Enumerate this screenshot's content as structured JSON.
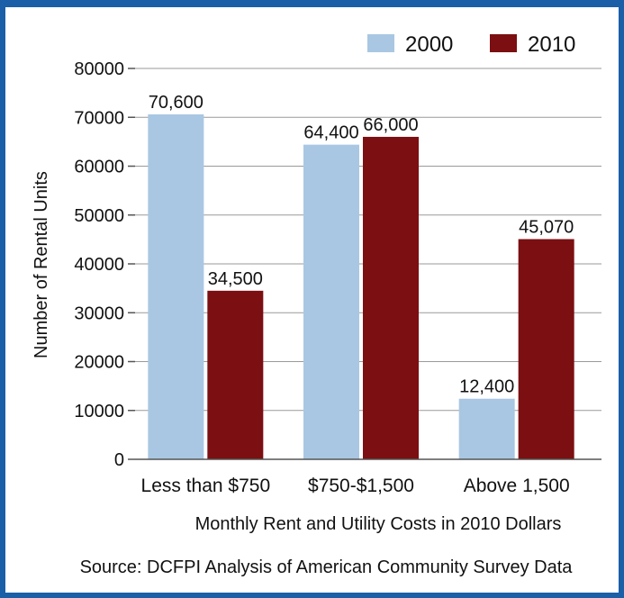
{
  "chart_data": {
    "type": "bar",
    "categories": [
      "Less than $750",
      "$750-$1,500",
      "Above 1,500"
    ],
    "series": [
      {
        "name": "2000",
        "values": [
          70600,
          64400,
          12400
        ],
        "labels": [
          "70,600",
          "64,400",
          "12,400"
        ],
        "color": "#a9c7e3"
      },
      {
        "name": "2010",
        "values": [
          34500,
          66000,
          45070
        ],
        "labels": [
          "34,500",
          "66,000",
          "45,070"
        ],
        "color": "#7b0f12"
      }
    ],
    "ylim": [
      0,
      80000
    ],
    "yticks": [
      "0",
      "10000",
      "20000",
      "30000",
      "40000",
      "50000",
      "60000",
      "70000",
      "80000"
    ],
    "ylabel": "Number of Rental Units",
    "xlabel": "Monthly Rent and Utility Costs in 2010 Dollars",
    "source": "Source: DCFPI Analysis of American Community Survey Data",
    "grid": true,
    "legend": "top-right",
    "frame_color": "#1a5fa8"
  }
}
